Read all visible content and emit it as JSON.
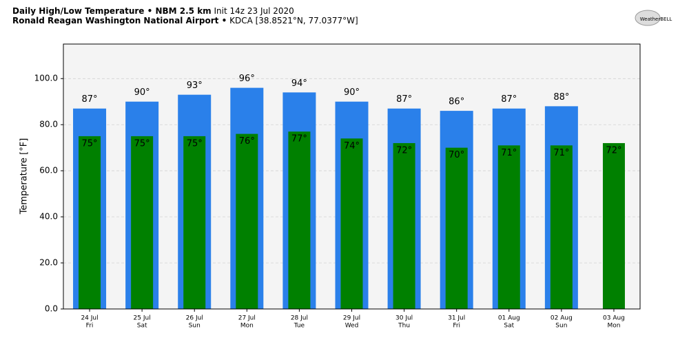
{
  "chart_data": {
    "type": "bar",
    "title": {
      "bold": "Daily High/Low Temperature • NBM 2.5 km",
      "normal": "Init 14z 23 Jul 2020"
    },
    "subtitle": {
      "bold": "Ronald Reagan Washington National Airport •",
      "normal": "KDCA [38.8521°N, 77.0377°W]"
    },
    "logo": "WeatherBELL",
    "y_label": "Temperature [°F]",
    "categories": [
      "24 Jul",
      "25 Jul",
      "26 Jul",
      "27 Jul",
      "28 Jul",
      "29 Jul",
      "30 Jul",
      "31 Jul",
      "01 Aug",
      "02 Aug",
      "03 Aug"
    ],
    "weekdays": [
      "Fri",
      "Sat",
      "Sun",
      "Mon",
      "Tue",
      "Wed",
      "Thu",
      "Fri",
      "Sat",
      "Sun",
      "Mon"
    ],
    "series": [
      {
        "color": "#2a80ea",
        "values": [
          87,
          90,
          93,
          96,
          94,
          90,
          87,
          86,
          87,
          88,
          null
        ],
        "value_labels": [
          "87°",
          "90°",
          "93°",
          "96°",
          "94°",
          "90°",
          "87°",
          "86°",
          "87°",
          "88°",
          null
        ]
      },
      {
        "color": "#008000",
        "values": [
          75,
          75,
          75,
          76,
          77,
          74,
          72,
          70,
          71,
          71,
          72
        ],
        "value_labels": [
          "75°",
          "75°",
          "75°",
          "76°",
          "77°",
          "74°",
          "72°",
          "70°",
          "71°",
          "71°",
          "72°"
        ]
      }
    ],
    "ylim": [
      0,
      115
    ],
    "yticks": [
      {
        "value": 0,
        "label": "0.0"
      },
      {
        "value": 20,
        "label": "20.0"
      },
      {
        "value": 40,
        "label": "40.0"
      },
      {
        "value": 60,
        "label": "60.0"
      },
      {
        "value": 80,
        "label": "80.0"
      },
      {
        "value": 100,
        "label": "100.0"
      }
    ],
    "grid": true
  }
}
